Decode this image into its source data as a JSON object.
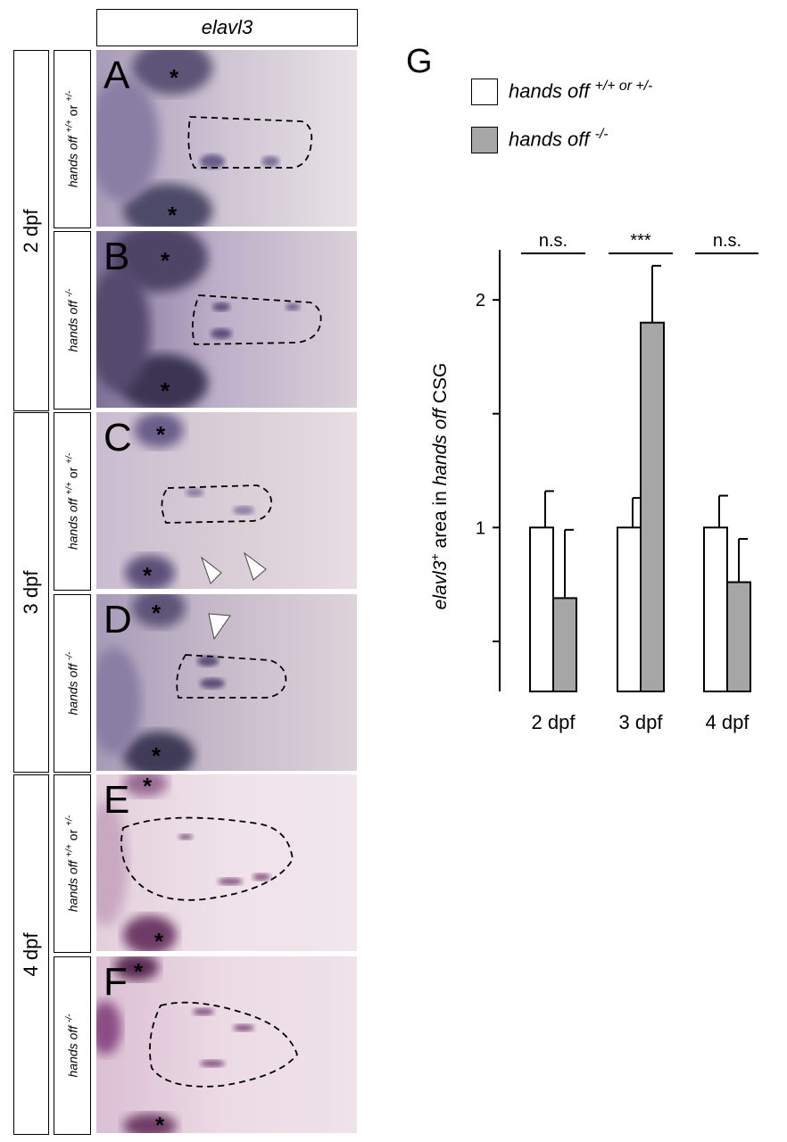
{
  "header": {
    "gene": "elavl3"
  },
  "ages": [
    {
      "id": "age-2dpf",
      "label": "2 dpf"
    },
    {
      "id": "age-3dpf",
      "label": "3 dpf"
    },
    {
      "id": "age-4dpf",
      "label": "4 dpf"
    }
  ],
  "genotypes": {
    "control": {
      "name": "hands off",
      "sup": "+/+",
      "or": "or",
      "sup2": "+/-"
    },
    "mutant": {
      "name": "hands off",
      "sup": "-/-"
    }
  },
  "panels": [
    {
      "letter": "A"
    },
    {
      "letter": "B"
    },
    {
      "letter": "C"
    },
    {
      "letter": "D"
    },
    {
      "letter": "E"
    },
    {
      "letter": "F"
    }
  ],
  "asterisk": "*",
  "legend": {
    "panel_letter": "G",
    "entries": [
      {
        "name": "hands off",
        "sup": "+/+ or +/-",
        "color": "#ffffff"
      },
      {
        "name": "hands off",
        "sup": "-/-",
        "color": "#a6a6a6"
      }
    ]
  },
  "chart_data": {
    "type": "bar",
    "categories": [
      "2 dpf",
      "3 dpf",
      "4 dpf"
    ],
    "series": [
      {
        "values": [
          1.0,
          1.0,
          1.0
        ],
        "errors": [
          0.16,
          0.13,
          0.14
        ],
        "color": "#ffffff"
      },
      {
        "values": [
          0.69,
          1.9,
          0.76
        ],
        "errors": [
          0.3,
          0.25,
          0.19
        ],
        "color": "#a6a6a6"
      }
    ],
    "ylabel_parts": {
      "gene": "elavl3",
      "sup": "+",
      "mid": " area in ",
      "name": "hands off",
      "end": " CSG"
    },
    "ylim": [
      0.28,
      2.22
    ],
    "yticks": [
      0.5,
      1,
      1.5,
      2
    ],
    "ytick_labels": [
      "",
      "1",
      "",
      "2"
    ],
    "significance": [
      "n.s.",
      "***",
      "n.s."
    ],
    "grid": false
  }
}
